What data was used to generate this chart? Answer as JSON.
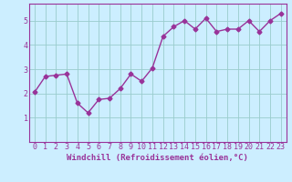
{
  "x": [
    0,
    1,
    2,
    3,
    4,
    5,
    6,
    7,
    8,
    9,
    10,
    11,
    12,
    13,
    14,
    15,
    16,
    17,
    18,
    19,
    20,
    21,
    22,
    23
  ],
  "y": [
    2.05,
    2.7,
    2.75,
    2.8,
    1.6,
    1.2,
    1.75,
    1.8,
    2.2,
    2.8,
    2.5,
    3.05,
    4.35,
    4.75,
    5.0,
    4.65,
    5.1,
    4.55,
    4.65,
    4.65,
    5.0,
    4.55,
    5.0,
    5.3
  ],
  "line_color": "#993399",
  "marker": "D",
  "marker_size": 2.5,
  "linewidth": 1.0,
  "xlabel": "Windchill (Refroidissement éolien,°C)",
  "xlim": [
    -0.5,
    23.5
  ],
  "ylim": [
    0,
    5.7
  ],
  "yticks": [
    1,
    2,
    3,
    4,
    5
  ],
  "xtick_labels": [
    "0",
    "1",
    "2",
    "3",
    "4",
    "5",
    "6",
    "7",
    "8",
    "9",
    "10",
    "11",
    "12",
    "13",
    "14",
    "15",
    "16",
    "17",
    "18",
    "19",
    "20",
    "21",
    "22",
    "23"
  ],
  "background_color": "#cceeff",
  "grid_color": "#99cccc",
  "font_color": "#993399",
  "xlabel_fontsize": 6.5,
  "tick_fontsize": 6.0
}
